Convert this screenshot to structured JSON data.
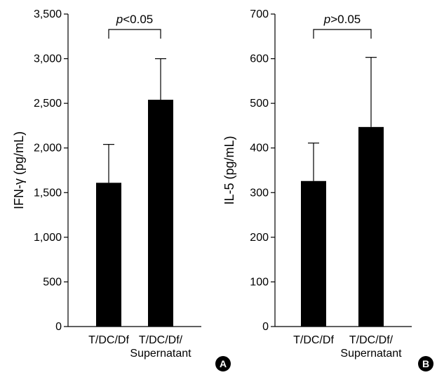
{
  "chart_data": [
    {
      "panel": "A",
      "type": "bar",
      "ylabel": "IFN-γ (pg/mL)",
      "ylim": [
        0,
        3500
      ],
      "yticks": [
        0,
        500,
        1000,
        1500,
        2000,
        2500,
        3000,
        3500
      ],
      "ytick_labels": [
        "0",
        "500",
        "1,000",
        "1,500",
        "2,000",
        "2,500",
        "3,000",
        "3,500"
      ],
      "categories": [
        [
          "T/DC/Df"
        ],
        [
          "T/DC/Df/",
          "Supernatant"
        ]
      ],
      "values": [
        1610,
        2540
      ],
      "error_upper": [
        2040,
        3000
      ],
      "significance": {
        "prefix": "p",
        "text": "<0.05"
      },
      "grid": false,
      "bar_color": "#000000"
    },
    {
      "panel": "B",
      "type": "bar",
      "ylabel": "IL-5 (pg/mL)",
      "ylim": [
        0,
        700
      ],
      "yticks": [
        0,
        100,
        200,
        300,
        400,
        500,
        600,
        700
      ],
      "ytick_labels": [
        "0",
        "100",
        "200",
        "300",
        "400",
        "500",
        "600",
        "700"
      ],
      "categories": [
        [
          "T/DC/Df"
        ],
        [
          "T/DC/Df/",
          "Supernatant"
        ]
      ],
      "values": [
        326,
        447
      ],
      "error_upper": [
        411,
        603
      ],
      "significance": {
        "prefix": "p",
        "text": ">0.05"
      },
      "grid": false,
      "bar_color": "#000000"
    }
  ],
  "badges": [
    "A",
    "B"
  ]
}
